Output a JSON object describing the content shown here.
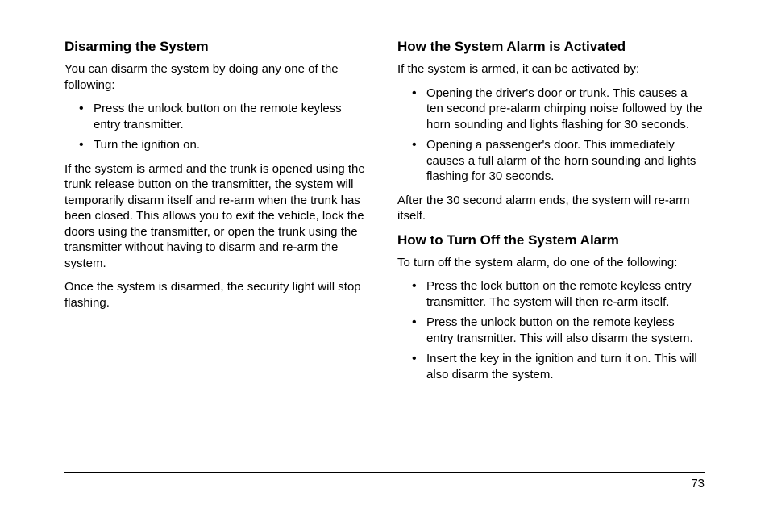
{
  "left": {
    "heading1": "Disarming the System",
    "p1": "You can disarm the system by doing any one of the following:",
    "list1": {
      "i0": "Press the unlock button on the remote keyless entry transmitter.",
      "i1": "Turn the ignition on."
    },
    "p2": "If the system is armed and the trunk is opened using the trunk release button on the transmitter, the system will temporarily disarm itself and re-arm when the trunk has been closed. This allows you to exit the vehicle, lock the doors using the transmitter, or open the trunk using the transmitter without having to disarm and re-arm the system.",
    "p3": "Once the system is disarmed, the security light will stop flashing."
  },
  "right": {
    "heading1": "How the System Alarm is Activated",
    "p1": "If the system is armed, it can be activated by:",
    "list1": {
      "i0": "Opening the driver's door or trunk. This causes a ten second pre-alarm chirping noise followed by the horn sounding and lights flashing for 30 seconds.",
      "i1": "Opening a passenger's door. This immediately causes a full alarm of the horn sounding and lights flashing for 30 seconds."
    },
    "p2": "After the 30 second alarm ends, the system will re-arm itself.",
    "heading2": "How to Turn Off the System Alarm",
    "p3": "To turn off the system alarm, do one of the following:",
    "list2": {
      "i0": "Press the lock button on the remote keyless entry transmitter. The system will then re-arm itself.",
      "i1": "Press the unlock button on the remote keyless entry transmitter. This will also disarm the system.",
      "i2": "Insert the key in the ignition and turn it on. This will also disarm the system."
    }
  },
  "page_number": "73"
}
